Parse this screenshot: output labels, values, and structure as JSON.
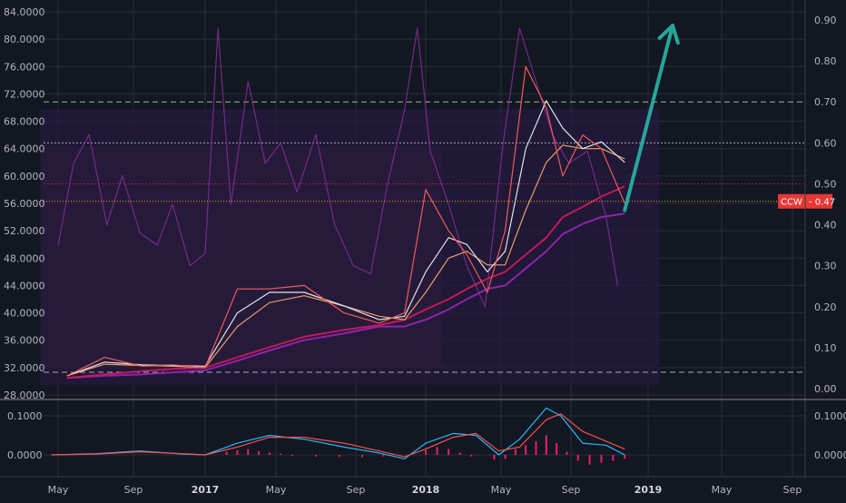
{
  "colors": {
    "background": "#131722",
    "grid": "#2a2e39",
    "axis_text": "#b2b5be",
    "price": "#f05a5a",
    "ma_fast": "#e2e2ea",
    "ma_mid": "#e8a06a",
    "ma_slow": "#c2185b",
    "ma_slower": "#8e24aa",
    "indicator": "#7b2d8e",
    "zone_red": "#3a1f35",
    "zone_purple": "#241a3d",
    "arrow": "#26a69a",
    "macd": "#29b6f6",
    "signal": "#ef5350",
    "hist": "#e91e63",
    "badge": "#e53935"
  },
  "badge": {
    "label": "CCW",
    "value": "0.47"
  },
  "chart_data": [
    {
      "type": "line",
      "panel": "price",
      "x_ticks": [
        "May",
        "Sep",
        "2017",
        "May",
        "Sep",
        "2018",
        "May",
        "Sep",
        "2019",
        "May",
        "Sep"
      ],
      "y_left_ticks": [
        "28.0000",
        "32.0000",
        "36.0000",
        "40.0000",
        "44.0000",
        "48.0000",
        "52.0000",
        "56.0000",
        "60.0000",
        "64.0000",
        "68.0000",
        "72.0000",
        "76.0000",
        "80.0000",
        "84.0000"
      ],
      "y_right_ticks": [
        "0.00",
        "0.10",
        "0.20",
        "0.30",
        "0.40",
        "0.50",
        "0.60",
        "0.70",
        "0.80",
        "0.90"
      ],
      "ylim_left": [
        28,
        84
      ],
      "ylim_right": [
        0,
        0.93
      ],
      "x": [
        2016.37,
        2016.54,
        2016.71,
        2016.85,
        2017.0,
        2017.15,
        2017.3,
        2017.45,
        2017.62,
        2017.78,
        2017.9,
        2018.0,
        2018.1,
        2018.18,
        2018.27,
        2018.35,
        2018.45,
        2018.55,
        2018.63,
        2018.72,
        2018.8,
        2018.9
      ],
      "series": [
        {
          "key": "price",
          "values": [
            30.8,
            33.5,
            32.2,
            32.4,
            32.0,
            43.5,
            43.5,
            44.0,
            40.0,
            38.5,
            40.0,
            58.0,
            52.0,
            48.5,
            43.0,
            52.0,
            76.0,
            70.0,
            60.0,
            66.0,
            64.0,
            56.0
          ]
        },
        {
          "key": "ma_fast",
          "values": [
            30.8,
            32.8,
            32.4,
            32.3,
            32.2,
            40.0,
            43.0,
            43.0,
            41.0,
            39.0,
            39.5,
            46.0,
            51.0,
            50.0,
            46.0,
            49.0,
            64.0,
            71.0,
            67.0,
            64.0,
            65.0,
            62.0
          ]
        },
        {
          "key": "ma_mid",
          "values": [
            30.8,
            32.5,
            32.3,
            32.2,
            32.0,
            38.0,
            41.5,
            42.5,
            41.0,
            39.5,
            39.0,
            43.0,
            48.0,
            49.0,
            47.0,
            47.0,
            55.0,
            62.0,
            64.5,
            64.0,
            64.0,
            62.5
          ]
        },
        {
          "key": "ma_slow",
          "values": [
            30.5,
            31.0,
            31.5,
            31.8,
            32.0,
            33.5,
            35.0,
            36.5,
            37.5,
            38.2,
            39.0,
            40.5,
            42.0,
            43.5,
            45.0,
            46.0,
            48.5,
            51.0,
            54.0,
            55.5,
            57.0,
            58.5
          ]
        },
        {
          "key": "ma_slower",
          "values": [
            30.5,
            30.8,
            31.0,
            31.3,
            31.6,
            33.0,
            34.5,
            36.0,
            37.0,
            38.0,
            38.0,
            39.0,
            40.5,
            42.0,
            43.5,
            44.0,
            46.5,
            49.0,
            51.5,
            53.0,
            54.0,
            54.5
          ]
        }
      ],
      "indicator": {
        "axis": "right",
        "x": [
          2016.33,
          2016.4,
          2016.47,
          2016.55,
          2016.62,
          2016.7,
          2016.78,
          2016.85,
          2016.93,
          2017.0,
          2017.06,
          2017.12,
          2017.2,
          2017.28,
          2017.35,
          2017.42,
          2017.5,
          2017.58,
          2017.66,
          2017.74,
          2017.82,
          2017.9,
          2017.96,
          2018.02,
          2018.1,
          2018.18,
          2018.26,
          2018.34,
          2018.42,
          2018.5,
          2018.58,
          2018.66,
          2018.74,
          2018.82,
          2018.87
        ],
        "values": [
          0.35,
          0.55,
          0.62,
          0.4,
          0.52,
          0.38,
          0.35,
          0.45,
          0.3,
          0.33,
          0.88,
          0.45,
          0.75,
          0.55,
          0.6,
          0.48,
          0.62,
          0.4,
          0.3,
          0.28,
          0.5,
          0.68,
          0.88,
          0.58,
          0.45,
          0.3,
          0.2,
          0.6,
          0.88,
          0.75,
          0.62,
          0.55,
          0.58,
          0.42,
          0.25
        ]
      },
      "levels_right": [
        0.7,
        0.6,
        0.5,
        0.04
      ],
      "price_level": 56.3,
      "shaded_zones": [
        {
          "color_key": "zone_red",
          "from_x": 2016.25,
          "to_x": 2018.07,
          "y_left": [
            31.8,
            64.2
          ]
        },
        {
          "color_key": "zone_purple",
          "from_x": 2016.25,
          "to_x": 2019.05,
          "y_left": [
            29.5,
            69.8
          ]
        }
      ],
      "arrow": {
        "from": [
          2018.9,
          55.0
        ],
        "to": [
          2019.11,
          82.0
        ]
      }
    },
    {
      "type": "line",
      "panel": "oscillator",
      "y_ticks": [
        "0.1000",
        "0.0000"
      ],
      "y_right_ticks": [
        "0.1000",
        "0.0000"
      ],
      "ylim": [
        -0.04,
        0.13
      ],
      "x": [
        2016.3,
        2016.5,
        2016.7,
        2016.9,
        2017.0,
        2017.15,
        2017.3,
        2017.45,
        2017.62,
        2017.78,
        2017.9,
        2018.0,
        2018.12,
        2018.22,
        2018.32,
        2018.42,
        2018.55,
        2018.62,
        2018.72,
        2018.82,
        2018.9
      ],
      "series": [
        {
          "key": "macd",
          "values": [
            0.0,
            0.003,
            0.01,
            0.002,
            0.0,
            0.03,
            0.05,
            0.04,
            0.02,
            0.005,
            -0.01,
            0.03,
            0.055,
            0.05,
            0.0,
            0.04,
            0.12,
            0.1,
            0.03,
            0.025,
            0.0
          ]
        },
        {
          "key": "signal",
          "values": [
            0.0,
            0.002,
            0.008,
            0.003,
            0.0,
            0.02,
            0.045,
            0.045,
            0.03,
            0.01,
            -0.005,
            0.015,
            0.045,
            0.055,
            0.01,
            0.02,
            0.09,
            0.105,
            0.06,
            0.035,
            0.015
          ]
        }
      ],
      "histogram": {
        "x": [
          2017.1,
          2017.15,
          2017.2,
          2017.25,
          2017.3,
          2017.35,
          2017.4,
          2017.5,
          2017.6,
          2017.7,
          2017.8,
          2018.0,
          2018.05,
          2018.1,
          2018.15,
          2018.2,
          2018.3,
          2018.35,
          2018.4,
          2018.45,
          2018.5,
          2018.55,
          2018.6,
          2018.65,
          2018.7,
          2018.75,
          2018.8,
          2018.85,
          2018.9
        ],
        "values": [
          0.008,
          0.012,
          0.015,
          0.01,
          0.006,
          0.003,
          -0.002,
          -0.004,
          -0.005,
          -0.006,
          -0.004,
          0.012,
          0.02,
          0.015,
          0.006,
          -0.004,
          -0.012,
          -0.01,
          0.015,
          0.025,
          0.035,
          0.05,
          0.03,
          0.008,
          -0.015,
          -0.025,
          -0.02,
          -0.015,
          -0.01
        ]
      }
    }
  ]
}
